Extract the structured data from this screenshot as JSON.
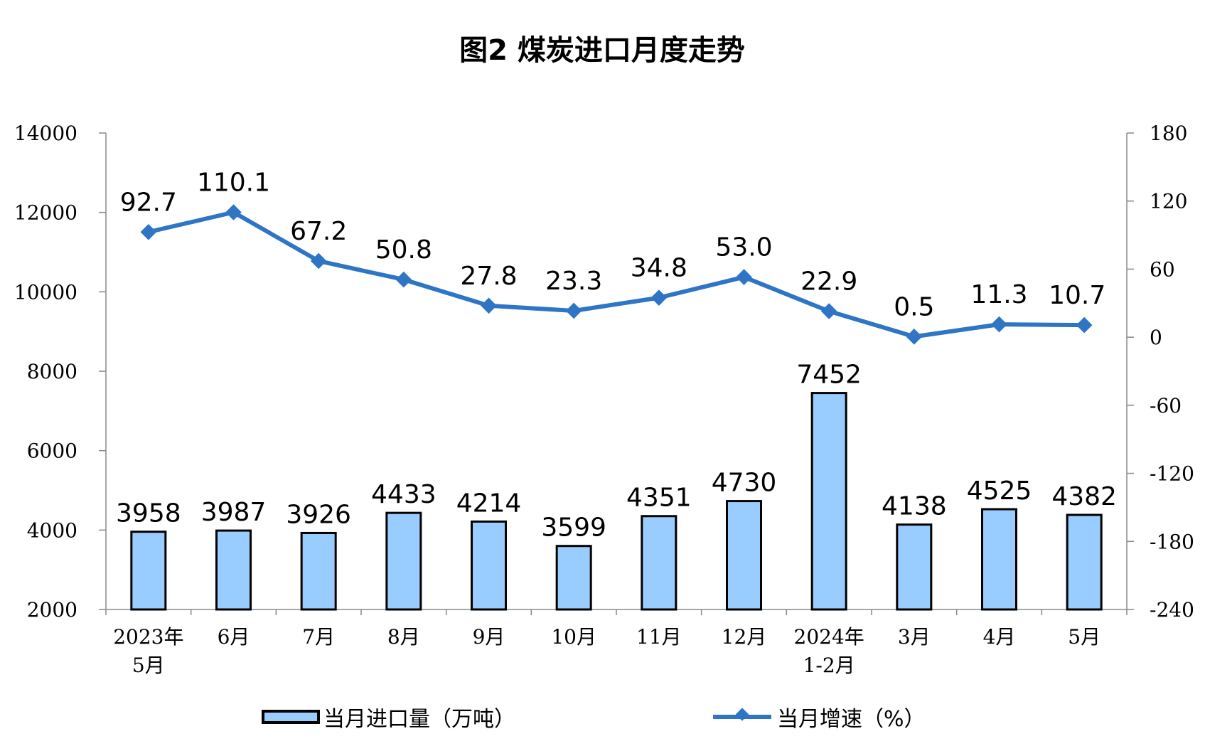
{
  "chart_data": {
    "type": "bar+line",
    "title": "图2  煤炭进口月度走势",
    "categories": [
      [
        "2023年",
        "5月"
      ],
      [
        "6月"
      ],
      [
        "7月"
      ],
      [
        "8月"
      ],
      [
        "9月"
      ],
      [
        "10月"
      ],
      [
        "11月"
      ],
      [
        "12月"
      ],
      [
        "2024年",
        "1-2月"
      ],
      [
        "3月"
      ],
      [
        "4月"
      ],
      [
        "5月"
      ]
    ],
    "series": [
      {
        "name": "当月进口量（万吨）",
        "type": "bar",
        "axis": "left",
        "color": "#99CCFF",
        "values": [
          3958,
          3987,
          3926,
          4433,
          4214,
          3599,
          4351,
          4730,
          7452,
          4138,
          4525,
          4382
        ],
        "labels": [
          "3958",
          "3987",
          "3926",
          "4433",
          "4214",
          "3599",
          "4351",
          "4730",
          "7452",
          "4138",
          "4525",
          "4382"
        ]
      },
      {
        "name": "当月增速（%）",
        "type": "line",
        "axis": "right",
        "color": "#2E75C6",
        "values": [
          92.7,
          110.1,
          67.2,
          50.8,
          27.8,
          23.3,
          34.8,
          53.0,
          22.9,
          0.5,
          11.3,
          10.7
        ],
        "labels": [
          "92.7",
          "110.1",
          "67.2",
          "50.8",
          "27.8",
          "23.3",
          "34.8",
          "53.0",
          "22.9",
          "0.5",
          "11.3",
          "10.7"
        ]
      }
    ],
    "y_left": {
      "range": [
        2000,
        14000
      ],
      "ticks": [
        "2000",
        "4000",
        "6000",
        "8000",
        "10000",
        "12000",
        "14000"
      ]
    },
    "y_right": {
      "range": [
        -240,
        180
      ],
      "ticks": [
        "-240",
        "-180",
        "-120",
        "-60",
        "0",
        "60",
        "120",
        "180"
      ]
    },
    "grid": false,
    "legend": "bottom"
  }
}
